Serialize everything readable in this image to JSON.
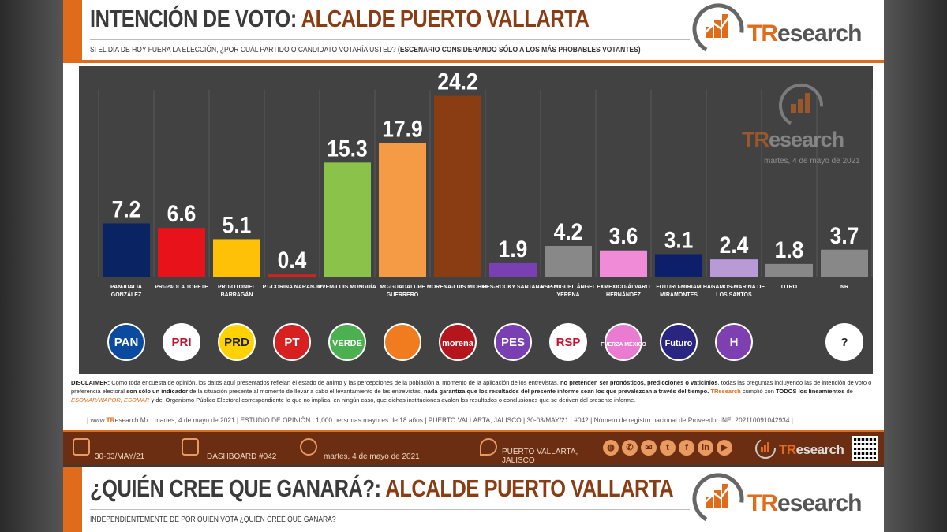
{
  "header": {
    "title_part1": "INTENCIÓN DE VOTO:",
    "title_part2": "ALCALDE PUERTO VALLARTA",
    "subtitle_normal": "SI EL DÍA DE HOY FUERA LA ELECCIÓN, ¿POR CUÁL PARTIDO O CANDIDATO VOTARÍA USTED?",
    "subtitle_bold": "(ESCENARIO CONSIDERANDO SÓLO A LOS MÁS PROBABLES VOTANTES)"
  },
  "brand": {
    "tr": "TR",
    "rest": "esearch",
    "watermark_date": "martes, 4 de mayo de 2021",
    "accent": "#e06b1a"
  },
  "chart_data": {
    "type": "bar",
    "categories": [
      "PAN-IDALIA GONZÁLEZ",
      "PRI-PAOLA TOPETE",
      "PRD-OTONIEL BARRAGÁN",
      "PT-CORINA NARANJO",
      "PVEM-LUIS MUNGUÍA",
      "MC-GUADALUPE GUERRERO",
      "MORENA-LUIS MICHEL",
      "PES-ROCKY SANTANA",
      "RSP-MIGUEL ÁNGEL YERENA",
      "FXMEXICO-ÁLVARO HERNÁNDEZ",
      "FUTURO-MIRIAM MIRAMONTES",
      "HAGAMOS-MARINA DE LOS SANTOS",
      "OTRO",
      "NR"
    ],
    "values": [
      7.2,
      6.6,
      5.1,
      0.4,
      15.3,
      17.9,
      24.2,
      1.9,
      4.2,
      3.6,
      3.1,
      2.4,
      1.8,
      3.7
    ],
    "value_labels": [
      "7.2",
      "6.6",
      "5.1",
      "0.4",
      "15.3",
      "17.9",
      "24.2",
      "1.9",
      "4.2",
      "3.6",
      "3.1",
      "2.4",
      "1.8",
      "3.7"
    ],
    "colors": [
      "#0a2463",
      "#e8121a",
      "#ffc107",
      "#d72020",
      "#8bc34a",
      "#f59a45",
      "#8a3c12",
      "#7b3fb4",
      "#888888",
      "#f08bd8",
      "#0d1f6b",
      "#b79ad6",
      "#888888",
      "#888888"
    ],
    "logo_icons": [
      "pan-logo-icon",
      "pri-logo-icon",
      "prd-logo-icon",
      "pt-logo-icon",
      "pvem-logo-icon",
      "mc-logo-icon",
      "morena-logo-icon",
      "pes-logo-icon",
      "rsp-logo-icon",
      "fxm-logo-icon",
      "futuro-logo-icon",
      "hagamos-logo-icon",
      "",
      "nr-question-icon"
    ],
    "logo_colors": [
      "#0a4a9f",
      "#ffffff",
      "#ffd200",
      "#d72020",
      "#4caf50",
      "#f07c1f",
      "#b5161d",
      "#7b3fb4",
      "#ffffff",
      "#e97bd0",
      "#2a2580",
      "#7e3fb0",
      "",
      "#ffffff"
    ],
    "logo_texts": [
      "PAN",
      "PRI",
      "PRD",
      "PT",
      "VERDE",
      "",
      "morena",
      "PES",
      "RSP",
      "FUERZA MÉXICO",
      "Futuro",
      "H",
      "",
      "?"
    ],
    "ylim": [
      0,
      25
    ],
    "grid": true
  },
  "disclaimer": {
    "label": "DISCLAIMER:",
    "text1": "Como toda encuesta de opinión, los datos aquí presentados reflejan el estado de ánimo y las percepciones de la población al momento de la aplicación de los entrevistas,",
    "bold1": "no pretenden ser pronósticos, predicciones o vaticinios",
    "text2": ", todas las preguntas incluyendo las de intención de voto o preferencia electoral",
    "bold2": "son sólo un indicador",
    "text3": "de la situación presente al momento de llevar a cabo el levantamiento de las entrevistas,",
    "bold3": "nada garantiza que los resultados del presente informe sean los que prevalezcan a través del tiempo.",
    "brand": "TResearch",
    "text4": "cumplió con",
    "bold4": "TODOS los lineamientos",
    "text5": "de",
    "org1": "ESOMAR/WAPOR, ESOMAR",
    "text6": "y del Organismo Público Electoral correspondiente lo que no implica, en ningún caso, que dichas instituciones avalen los resultados o conclusiones que se deriven del presente informe."
  },
  "footer": {
    "line_pre": "| www.",
    "line_brand": "TR",
    "line_post": "esearch.Mx | martes, 4 de mayo de 2021 | ESTUDIO DE OPINIÓN | 1,000 personas mayores de 18 años | PUERTO VALLARTA, JALISCO | 30-03/MAY/21 | #042 | Número de registro nacional de Proveedor INE: 202110091042934 |",
    "date_range": "30-03/MAY/21",
    "dashboard": "DASHBOARD #042",
    "date": "martes, 4 de mayo de 2021",
    "location": "PUERTO VALLARTA, JALISCO"
  },
  "section2": {
    "title_part1": "¿QUIÉN CREE QUE GANARÁ?:",
    "title_part2": "ALCALDE PUERTO VALLARTA",
    "subtitle": "INDEPENDIENTEMENTE DE POR QUIÉN VOTA ¿QUIÉN CREE QUE GANARÁ?"
  }
}
